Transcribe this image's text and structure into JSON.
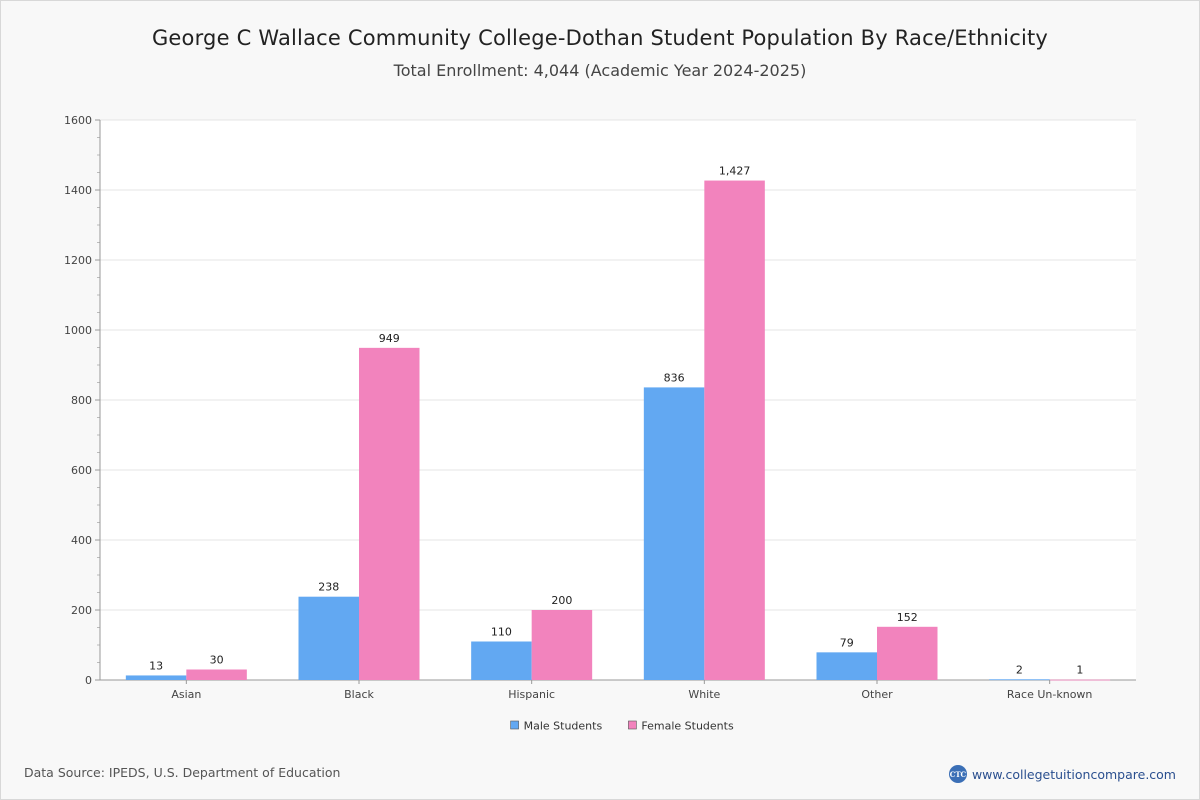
{
  "header": {
    "title": "George C Wallace Community College-Dothan Student Population By Race/Ethnicity",
    "subtitle": "Total Enrollment: 4,044 (Academic Year 2024-2025)"
  },
  "footer": {
    "source": "Data Source: IPEDS, U.S. Department of Education",
    "brand_logo": "CTC",
    "brand_url": "www.collegetuitioncompare.com"
  },
  "colors": {
    "male": "#62a8f2",
    "female": "#f283bd",
    "grid": "#e4e4e4",
    "axis": "#999999"
  },
  "chart_data": {
    "type": "bar",
    "categories": [
      "Asian",
      "Black",
      "Hispanic",
      "White",
      "Other",
      "Race Un-known"
    ],
    "series": [
      {
        "name": "Male Students",
        "values": [
          13,
          238,
          110,
          836,
          79,
          2
        ],
        "labels": [
          "13",
          "238",
          "110",
          "836",
          "79",
          "2"
        ]
      },
      {
        "name": "Female Students",
        "values": [
          30,
          949,
          200,
          1427,
          152,
          1
        ],
        "labels": [
          "30",
          "949",
          "200",
          "1,427",
          "152",
          "1"
        ]
      }
    ],
    "ylim": [
      0,
      1600
    ],
    "yticks": [
      0,
      200,
      400,
      600,
      800,
      1000,
      1200,
      1400,
      1600
    ],
    "grid": true,
    "legend_position": "bottom-center",
    "xlabel": "",
    "ylabel": ""
  }
}
